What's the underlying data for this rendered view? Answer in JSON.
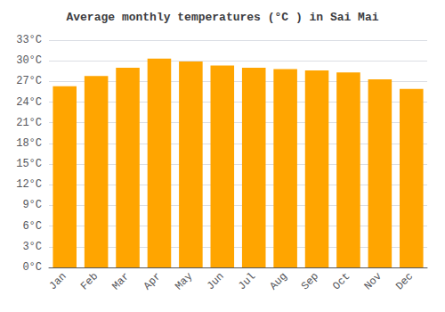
{
  "chart_data": {
    "type": "bar",
    "title": "Average monthly temperatures (°C ) in Sai Mai",
    "categories": [
      "Jan",
      "Feb",
      "Mar",
      "Apr",
      "May",
      "Jun",
      "Jul",
      "Aug",
      "Sep",
      "Oct",
      "Nov",
      "Dec"
    ],
    "values": [
      26.3,
      27.8,
      29.0,
      30.3,
      29.9,
      29.3,
      29.0,
      28.8,
      28.6,
      28.3,
      27.3,
      25.9
    ],
    "color": "#FFA500",
    "ylim": [
      0,
      33
    ],
    "yticks": [
      {
        "value": 0,
        "label": "0°C"
      },
      {
        "value": 3,
        "label": "3°C"
      },
      {
        "value": 6,
        "label": "6°C"
      },
      {
        "value": 9,
        "label": "9°C"
      },
      {
        "value": 12,
        "label": "12°C"
      },
      {
        "value": 15,
        "label": "15°C"
      },
      {
        "value": 18,
        "label": "18°C"
      },
      {
        "value": 21,
        "label": "21°C"
      },
      {
        "value": 24,
        "label": "24°C"
      },
      {
        "value": 27,
        "label": "27°C"
      },
      {
        "value": 30,
        "label": "30°C"
      },
      {
        "value": 33,
        "label": "33°C"
      }
    ],
    "grid": true
  }
}
